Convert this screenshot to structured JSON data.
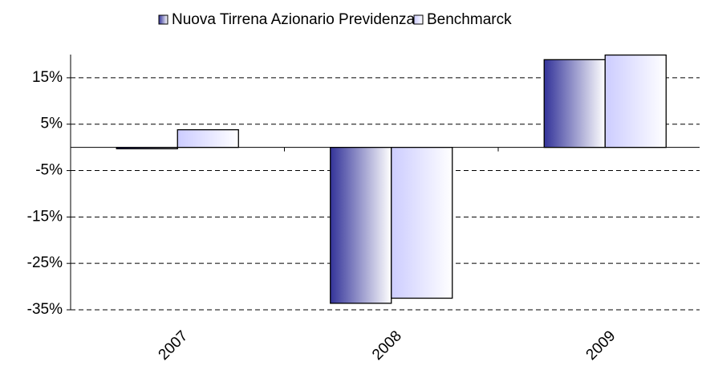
{
  "chart_data": {
    "type": "bar",
    "categories": [
      "2007",
      "2008",
      "2009"
    ],
    "series": [
      {
        "name": "Nuova Tirrena Azionario Previdenza",
        "color": "#333399",
        "values": [
          -0.3,
          -33.6,
          18.9
        ]
      },
      {
        "name": "Benchmarck",
        "color": "#ccccff",
        "values": [
          3.8,
          -32.5,
          19.9
        ]
      }
    ],
    "ylim": [
      -35,
      20
    ],
    "yticks": [
      {
        "value": 15,
        "label": "15%"
      },
      {
        "value": 5,
        "label": "5%"
      },
      {
        "value": -5,
        "label": "-5%"
      },
      {
        "value": -15,
        "label": "-15%"
      },
      {
        "value": -25,
        "label": "-25%"
      },
      {
        "value": -35,
        "label": "-35%"
      }
    ],
    "grid": true,
    "legend": "top"
  }
}
